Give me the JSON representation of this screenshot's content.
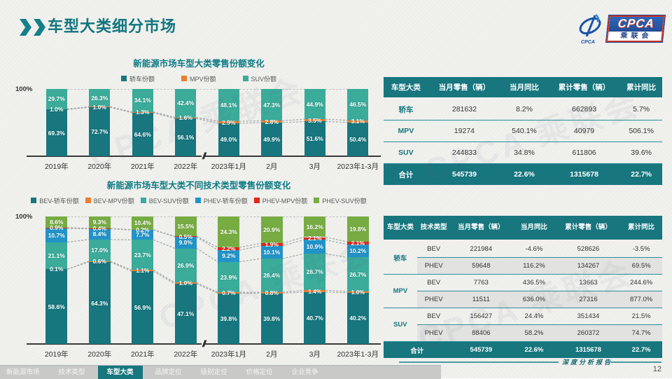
{
  "page": {
    "title": "车型大类细分市场",
    "page_number": "12",
    "report_label": "深度分析报告",
    "watermark": "CPCA 乘联会",
    "accent_color": "#17767e",
    "background_color": "#f1f1ee"
  },
  "logo": {
    "cpca": "CPCA",
    "cn": "乘联会"
  },
  "chart_data": [
    {
      "type": "bar",
      "stacked": true,
      "title": "新能源市场车型大类零售份额变化",
      "y_max_label": "100%",
      "ylim": [
        0,
        100
      ],
      "legend_position": "top",
      "grid": false,
      "axis_break_after_index": 3,
      "categories": [
        "2019年",
        "2020年",
        "2021年",
        "2022年",
        "2023年1月",
        "2月",
        "3月",
        "2023年1-3月"
      ],
      "series": [
        {
          "name": "轿车份额",
          "color": "#17767e",
          "values": [
            69.3,
            72.7,
            64.6,
            56.1,
            49.0,
            49.9,
            51.6,
            50.4
          ]
        },
        {
          "name": "MPV份额",
          "color": "#ed7d31",
          "values": [
            1.0,
            1.0,
            1.3,
            1.6,
            2.9,
            2.8,
            3.5,
            3.1
          ]
        },
        {
          "name": "SUV份额",
          "color": "#3bab9a",
          "values": [
            29.7,
            26.3,
            34.1,
            42.4,
            48.1,
            47.3,
            44.9,
            46.5
          ]
        }
      ]
    },
    {
      "type": "bar",
      "stacked": true,
      "title": "新能源市场车型大类不同技术类型零售份额变化",
      "y_max_label": "100%",
      "ylim": [
        0,
        100
      ],
      "legend_position": "top",
      "grid": false,
      "axis_break_after_index": 3,
      "categories": [
        "2019年",
        "2020年",
        "2021年",
        "2022年",
        "2023年1月",
        "2月",
        "3月",
        "2023年1-3月"
      ],
      "series": [
        {
          "name": "BEV-轿车份额",
          "color": "#17767e",
          "values": [
            58.6,
            64.3,
            56.9,
            47.1,
            39.8,
            39.8,
            40.7,
            40.2
          ]
        },
        {
          "name": "BEV-MPV份额",
          "color": "#ed7d31",
          "values": [
            0.1,
            0.6,
            1.1,
            1.0,
            0.7,
            0.8,
            1.4,
            1.0
          ]
        },
        {
          "name": "BEV-SUV份额",
          "color": "#3bab9a",
          "values": [
            21.1,
            17.0,
            23.7,
            26.9,
            23.9,
            26.4,
            28.7,
            26.7
          ]
        },
        {
          "name": "PHEV-轿车份额",
          "color": "#2193c8",
          "values": [
            10.7,
            8.4,
            7.7,
            9.0,
            9.2,
            10.1,
            10.9,
            10.2
          ]
        },
        {
          "name": "PHEV-MPV份额",
          "color": "#e1251b",
          "values": [
            0.9,
            0.4,
            0.2,
            0.5,
            2.2,
            1.9,
            2.1,
            2.1
          ]
        },
        {
          "name": "PHEV-SUV份额",
          "color": "#77ac43",
          "values": [
            8.6,
            9.3,
            10.4,
            15.5,
            24.3,
            20.9,
            16.2,
            19.8
          ]
        }
      ]
    }
  ],
  "tables": [
    {
      "headers": [
        "车型大类",
        "当月零售（辆）",
        "当月同比",
        "累计零售（辆）",
        "累计同比"
      ],
      "rows": [
        [
          "轿车",
          "281632",
          "8.2%",
          "662893",
          "5.7%"
        ],
        [
          "MPV",
          "19274",
          "540.1%",
          "40979",
          "506.1%"
        ],
        [
          "SUV",
          "244833",
          "34.8%",
          "611806",
          "39.6%"
        ]
      ],
      "total": [
        "合计",
        "545739",
        "22.6%",
        "1315678",
        "22.7%"
      ]
    },
    {
      "headers": [
        "车型大类",
        "技术类型",
        "当月零售（辆）",
        "当月同比",
        "累计零售（辆）",
        "累计同比"
      ],
      "groups": [
        {
          "category": "轿车",
          "rows": [
            [
              "BEV",
              "221984",
              "-4.6%",
              "528626",
              "-3.5%"
            ],
            [
              "PHEV",
              "59648",
              "116.2%",
              "134267",
              "69.5%"
            ]
          ]
        },
        {
          "category": "MPV",
          "rows": [
            [
              "BEV",
              "7763",
              "436.5%",
              "13663",
              "244.6%"
            ],
            [
              "PHEV",
              "11511",
              "636.0%",
              "27316",
              "877.0%"
            ]
          ]
        },
        {
          "category": "SUV",
          "rows": [
            [
              "BEV",
              "156427",
              "24.4%",
              "351434",
              "21.5%"
            ],
            [
              "PHEV",
              "88406",
              "58.2%",
              "260372",
              "74.7%"
            ]
          ]
        }
      ],
      "total": [
        "合计",
        "545739",
        "22.6%",
        "1315678",
        "22.7%"
      ]
    }
  ],
  "footer": {
    "tabs": [
      {
        "label": "新能源市场",
        "active": false
      },
      {
        "label": "技术类型",
        "active": false
      },
      {
        "label": "车型大类",
        "active": true
      },
      {
        "label": "品牌定位",
        "active": false
      },
      {
        "label": "级别定位",
        "active": false
      },
      {
        "label": "价格定位",
        "active": false
      },
      {
        "label": "企业竞争",
        "active": false
      }
    ]
  }
}
